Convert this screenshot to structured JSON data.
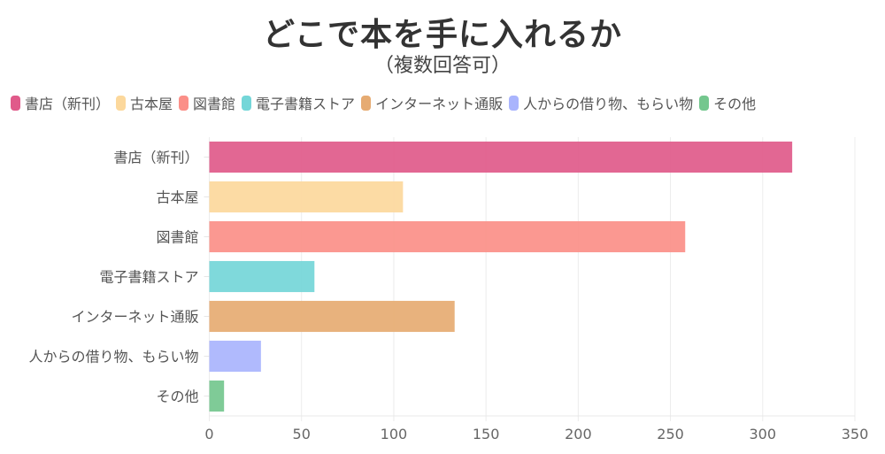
{
  "chart_data": {
    "type": "bar",
    "orientation": "horizontal",
    "title": "どこで本を手に入れるか",
    "subtitle": "（複数回答可）",
    "categories": [
      "書店（新刊）",
      "古本屋",
      "図書館",
      "電子書籍ストア",
      "インターネット通販",
      "人からの借り物、もらい物",
      "その他"
    ],
    "values": [
      316,
      105,
      258,
      57,
      133,
      28,
      8
    ],
    "colors": [
      "#e05a8a",
      "#fcd89c",
      "#fb8f88",
      "#74d6d8",
      "#e6ab72",
      "#a9b4fd",
      "#74c78e"
    ],
    "xlabel": "",
    "ylabel": "",
    "xlim": [
      0,
      350
    ],
    "xticks": [
      0,
      50,
      100,
      150,
      200,
      250,
      300,
      350
    ],
    "grid": true,
    "legend_position": "top-left",
    "legend": [
      "書店（新刊）",
      "古本屋",
      "図書館",
      "電子書籍ストア",
      "インターネット通販",
      "人からの借り物、もらい物",
      "その他"
    ]
  }
}
